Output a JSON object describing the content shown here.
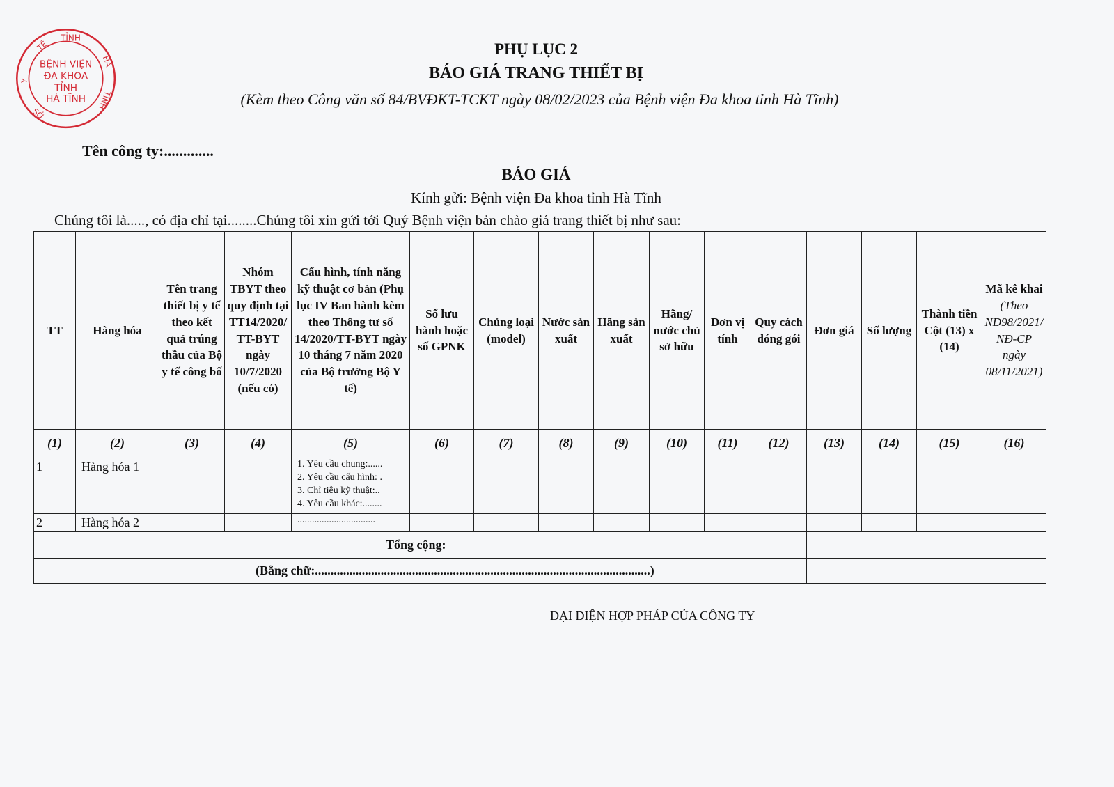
{
  "header": {
    "appendix": "PHỤ LỤC 2",
    "title": "BÁO GIÁ TRANG THIẾT BỊ",
    "subtitle": "(Kèm theo Công văn số 84/BVĐKT-TCKT ngày 08/02/2023 của Bệnh viện Đa khoa tỉnh Hà Tĩnh)"
  },
  "stamp": {
    "text": "Y TẾ TỈNH HÀ TĨNH · BỆNH VIỆN ĐA KHOA TỈNH HÀ TĨNH",
    "color": "#d42a35"
  },
  "company_label": "Tên công ty:.............",
  "quote": {
    "title": "BÁO GIÁ",
    "recipient": "Kính gửi: Bệnh viện Đa khoa tỉnh Hà Tĩnh",
    "intro": "Chúng tôi là....., có địa chỉ tại........Chúng tôi xin gửi tới Quý Bệnh viện bản chào giá trang thiết bị như sau:"
  },
  "table": {
    "headers": [
      "TT",
      "Hàng hóa",
      "Tên trang thiết bị y tế theo kết quả trúng thầu của Bộ y tế công bố",
      "Nhóm TBYT theo quy định tại TT14/2020/TT-BYT ngày 10/7/2020 (nếu có)",
      "Cấu hình, tính năng kỹ thuật cơ bản (Phụ lục IV Ban hành kèm theo Thông tư số 14/2020/TT-BYT ngày 10 tháng 7 năm 2020 của Bộ trưởng Bộ Y tế)",
      "Số lưu hành hoặc số GPNK",
      "Chủng loại (model)",
      "Nước sản xuất",
      "Hãng sản xuất",
      "Hãng/ nước chủ sở hữu",
      "Đơn vị tính",
      "Quy cách đóng gói",
      "Đơn giá",
      "Số lượng",
      "Thành tiền Cột (13) x (14)",
      "Mã kê khai"
    ],
    "last_header_note": "(Theo NĐ98/2021/NĐ-CP ngày 08/11/2021)",
    "column_numbers": [
      "(1)",
      "(2)",
      "(3)",
      "(4)",
      "(5)",
      "(6)",
      "(7)",
      "(8)",
      "(9)",
      "(10)",
      "(11)",
      "(12)",
      "(13)",
      "(14)",
      "(15)",
      "(16)"
    ],
    "rows": [
      {
        "tt": "1",
        "item": "Hàng hóa 1",
        "spec": [
          "1. Yêu cầu chung:......",
          "2. Yêu cầu cấu hình: .",
          "3. Chỉ tiêu kỹ thuật:..",
          "4. Yêu cầu khác:........"
        ]
      },
      {
        "tt": "2",
        "item": "Hàng hóa 2",
        "spec": [
          "................................"
        ]
      }
    ],
    "total_label": "Tổng cộng:",
    "in_words": "(Bằng chữ:...........................................................................................................)"
  },
  "signature": "ĐẠI DIỆN HỢP PHÁP CỦA CÔNG TY"
}
